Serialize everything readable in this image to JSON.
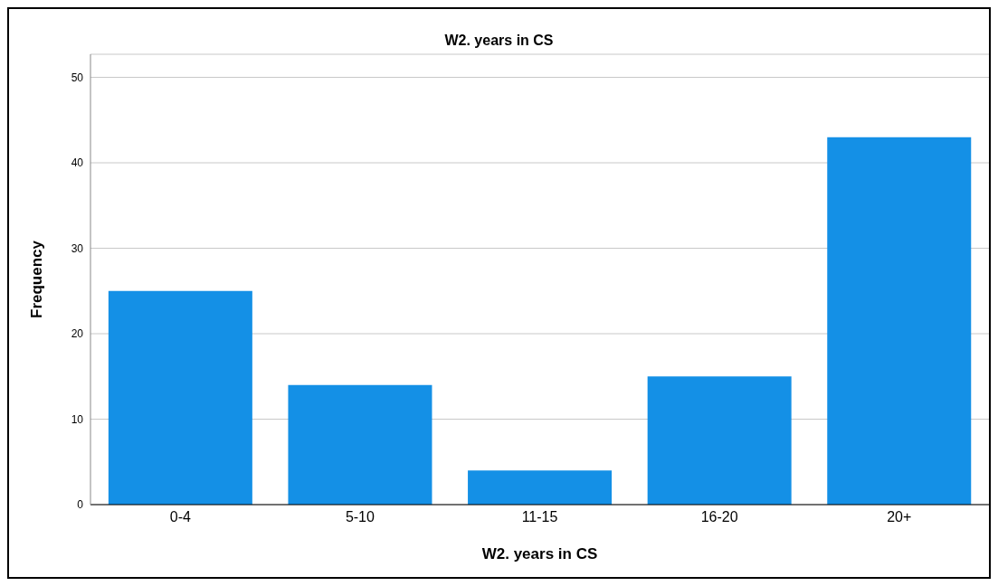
{
  "chart_data": {
    "type": "bar",
    "title": "W2. years in CS",
    "xlabel": "W2. years in CS",
    "ylabel": "Frequency",
    "categories": [
      "0-4",
      "5-10",
      "11-15",
      "16-20",
      "20+"
    ],
    "values": [
      25,
      14,
      4,
      15,
      43
    ],
    "color": "#1490e6",
    "ylim": [
      0,
      52.7
    ],
    "yticks": [
      0,
      10,
      20,
      30,
      40,
      50
    ],
    "grid": "y"
  }
}
